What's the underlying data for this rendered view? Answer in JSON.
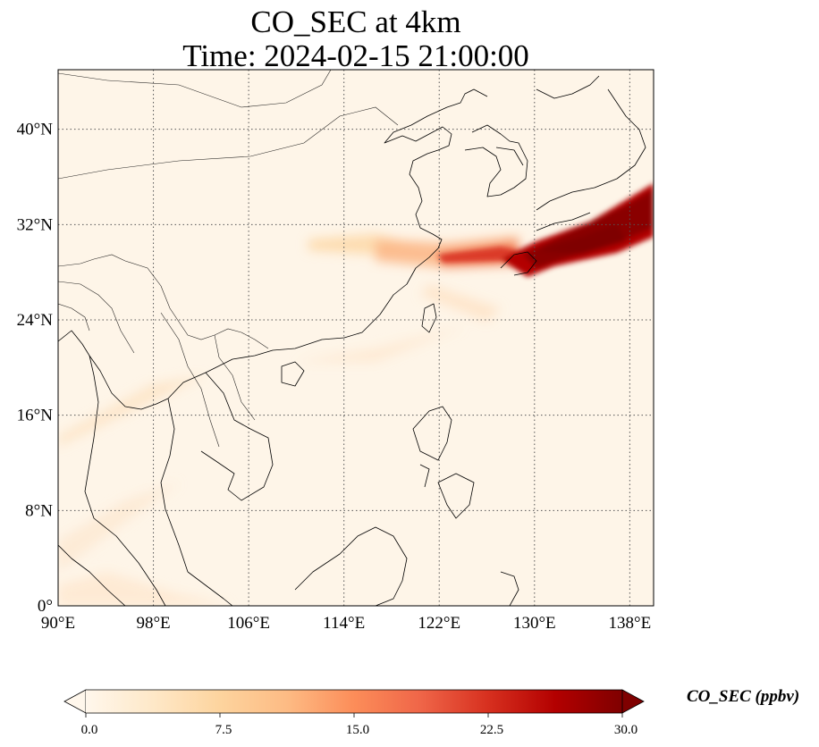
{
  "title": "CO_SEC at 4km",
  "subtitle": "Time: 2024-02-15 21:00:00",
  "map": {
    "lon_range": [
      90,
      140
    ],
    "lat_range": [
      0,
      45
    ],
    "gridline_style": "dotted",
    "lon_ticks": [
      {
        "value": 90,
        "label": "90°E"
      },
      {
        "value": 98,
        "label": "98°E"
      },
      {
        "value": 106,
        "label": "106°E"
      },
      {
        "value": 114,
        "label": "114°E"
      },
      {
        "value": 122,
        "label": "122°E"
      },
      {
        "value": 130,
        "label": "130°E"
      },
      {
        "value": 138,
        "label": "138°E"
      }
    ],
    "lat_ticks": [
      {
        "value": 0,
        "label": "0°"
      },
      {
        "value": 8,
        "label": "8°N"
      },
      {
        "value": 16,
        "label": "16°N"
      },
      {
        "value": 24,
        "label": "24°N"
      },
      {
        "value": 32,
        "label": "32°N"
      },
      {
        "value": 40,
        "label": "40°N"
      }
    ],
    "background_color": "#fef5e8",
    "coast_color": "#000000"
  },
  "colorbar": {
    "label": "CO_SEC (ppbv)",
    "min": 0.0,
    "max": 30.0,
    "extend": "both",
    "colormap": "OrRd",
    "ticks": [
      "0.0",
      "7.5",
      "15.0",
      "22.5",
      "30.0"
    ],
    "stops": [
      "#fff7ec",
      "#fee8c8",
      "#fdd49e",
      "#fdbb84",
      "#fc8d59",
      "#ef6548",
      "#d7301f",
      "#b30000",
      "#7f0000"
    ]
  },
  "plume": {
    "description_values": "CO_SEC concentration field: main plume along ~30-31°N from ~111°E to ~140°E, peak >30 ppbv near 130-140°E",
    "core_max_ppbv": 30,
    "west_tail_ppbv": 7.5
  }
}
